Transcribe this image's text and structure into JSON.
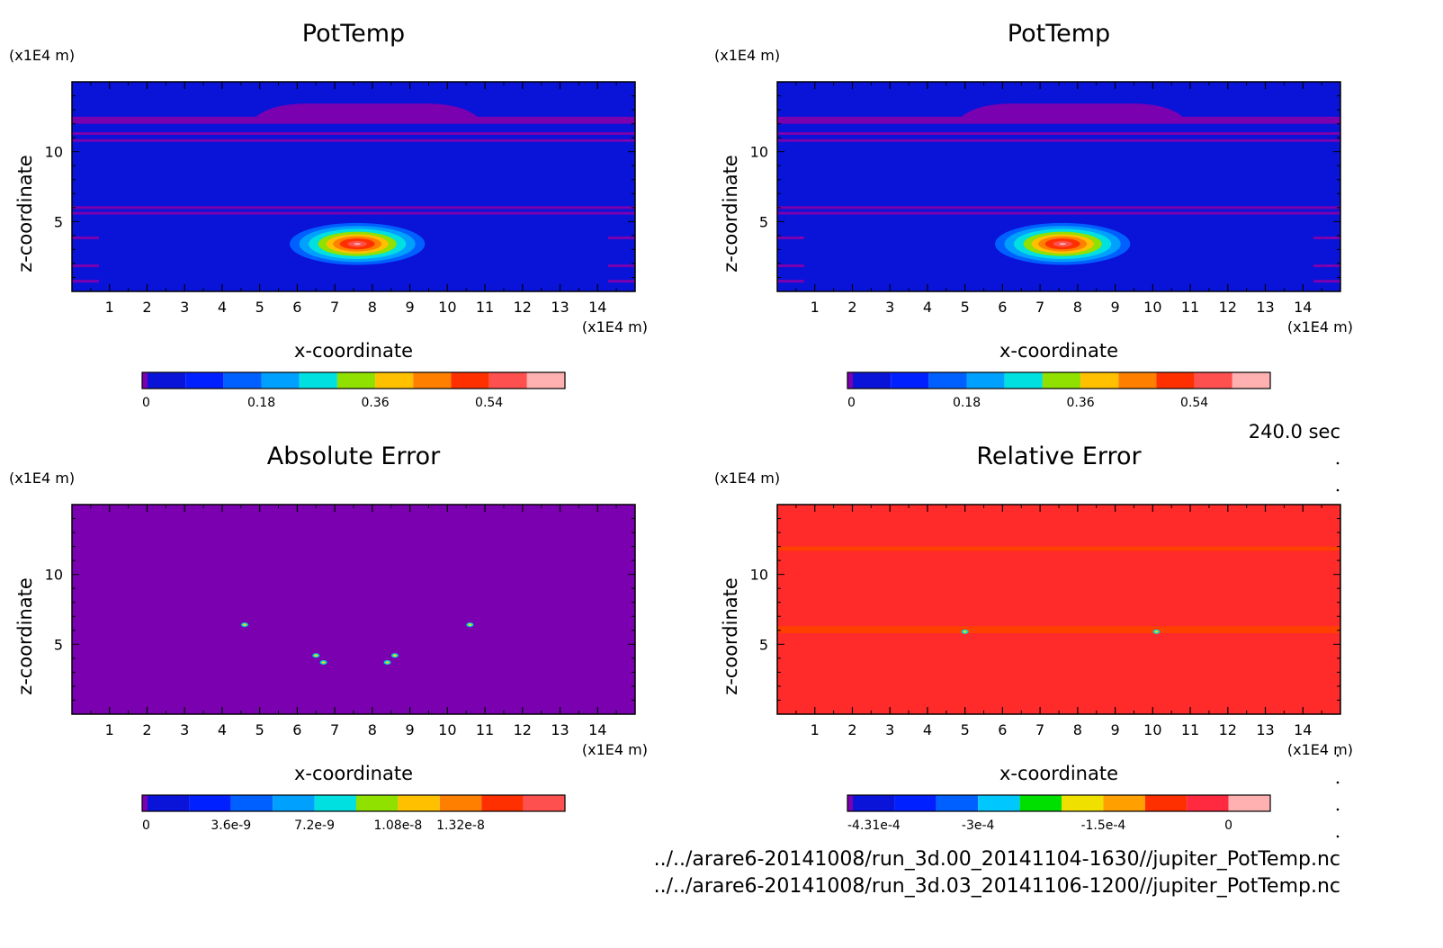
{
  "time_label": "240.0 sec",
  "footer": {
    "file1": "../../arare6-20141008/run_3d.00_20141104-1630//jupiter_PotTemp.nc",
    "file2": "../../arare6-20141008/run_3d.03_20141106-1200//jupiter_PotTemp.nc"
  },
  "chart_data": [
    {
      "type": "heatmap",
      "title": "PotTemp",
      "xlabel": "x-coordinate",
      "ylabel": "z-coordinate",
      "x_unit": "(x1E4 m)",
      "y_unit": "(x1E4 m)",
      "xlim": [
        0,
        15
      ],
      "ylim": [
        0,
        15
      ],
      "x_ticks": [
        "1",
        "2",
        "3",
        "4",
        "5",
        "6",
        "7",
        "8",
        "9",
        "10",
        "11",
        "12",
        "13",
        "14"
      ],
      "y_ticks": [
        "5",
        "10"
      ],
      "background_color": "#0a14d8",
      "features": [
        {
          "kind": "bubble",
          "x": 7.6,
          "z": 3.4,
          "rx": 1.8,
          "rz": 1.5,
          "max": 0.6
        },
        {
          "kind": "band",
          "z_from": 12.0,
          "z_to": 12.5,
          "color": "#7a00b0"
        }
      ],
      "colorbar": {
        "labels": [
          "0",
          "0.18",
          "0.36",
          "0.54"
        ],
        "colors": [
          "#7a00b0",
          "#0a14d8",
          "#0020ff",
          "#0060ff",
          "#00a0ff",
          "#00e0e0",
          "#90e000",
          "#ffc000",
          "#ff8000",
          "#ff3000",
          "#ff5050",
          "#ffb0b0"
        ]
      }
    },
    {
      "type": "heatmap",
      "title": "PotTemp",
      "xlabel": "x-coordinate",
      "ylabel": "z-coordinate",
      "x_unit": "(x1E4 m)",
      "y_unit": "(x1E4 m)",
      "xlim": [
        0,
        15
      ],
      "ylim": [
        0,
        15
      ],
      "x_ticks": [
        "1",
        "2",
        "3",
        "4",
        "5",
        "6",
        "7",
        "8",
        "9",
        "10",
        "11",
        "12",
        "13",
        "14"
      ],
      "y_ticks": [
        "5",
        "10"
      ],
      "background_color": "#0a14d8",
      "features": [
        {
          "kind": "bubble",
          "x": 7.6,
          "z": 3.4,
          "rx": 1.8,
          "rz": 1.5,
          "max": 0.6
        },
        {
          "kind": "band",
          "z_from": 12.0,
          "z_to": 12.5,
          "color": "#7a00b0"
        }
      ],
      "colorbar": {
        "labels": [
          "0",
          "0.18",
          "0.36",
          "0.54"
        ],
        "colors": [
          "#7a00b0",
          "#0a14d8",
          "#0020ff",
          "#0060ff",
          "#00a0ff",
          "#00e0e0",
          "#90e000",
          "#ffc000",
          "#ff8000",
          "#ff3000",
          "#ff5050",
          "#ffb0b0"
        ]
      }
    },
    {
      "type": "heatmap",
      "title": "Absolute Error",
      "xlabel": "x-coordinate",
      "ylabel": "z-coordinate",
      "x_unit": "(x1E4 m)",
      "y_unit": "(x1E4 m)",
      "xlim": [
        0,
        15
      ],
      "ylim": [
        0,
        15
      ],
      "x_ticks": [
        "1",
        "2",
        "3",
        "4",
        "5",
        "6",
        "7",
        "8",
        "9",
        "10",
        "11",
        "12",
        "13",
        "14"
      ],
      "y_ticks": [
        "5",
        "10"
      ],
      "background_color": "#7a00b0",
      "features": [
        {
          "kind": "spot",
          "x": 4.6,
          "z": 6.4
        },
        {
          "kind": "spot",
          "x": 10.6,
          "z": 6.4
        },
        {
          "kind": "spot",
          "x": 6.5,
          "z": 4.2
        },
        {
          "kind": "spot",
          "x": 6.7,
          "z": 3.7
        },
        {
          "kind": "spot",
          "x": 8.6,
          "z": 4.2
        },
        {
          "kind": "spot",
          "x": 8.4,
          "z": 3.7
        }
      ],
      "colorbar": {
        "labels": [
          "0",
          "3.6e-9",
          "7.2e-9",
          "1.08e-8",
          "1.32e-8"
        ],
        "colors": [
          "#7a00b0",
          "#0a14d8",
          "#0020ff",
          "#0060ff",
          "#00a0ff",
          "#00e0e0",
          "#90e000",
          "#ffc000",
          "#ff8000",
          "#ff3000",
          "#ff5050"
        ]
      }
    },
    {
      "type": "heatmap",
      "title": "Relative Error",
      "xlabel": "x-coordinate",
      "ylabel": "z-coordinate",
      "x_unit": "(x1E4 m)",
      "y_unit": "(x1E4 m)",
      "xlim": [
        0,
        15
      ],
      "ylim": [
        0,
        15
      ],
      "x_ticks": [
        "1",
        "2",
        "3",
        "4",
        "5",
        "6",
        "7",
        "8",
        "9",
        "10",
        "11",
        "12",
        "13",
        "14"
      ],
      "y_ticks": [
        "5",
        "10"
      ],
      "background_color": "#ff2a2a",
      "features": [
        {
          "kind": "band",
          "z_from": 11.7,
          "z_to": 12.0,
          "color": "#ff4000"
        },
        {
          "kind": "band",
          "z_from": 5.8,
          "z_to": 6.3,
          "color": "#ff4000"
        },
        {
          "kind": "spot",
          "x": 5.0,
          "z": 5.9
        },
        {
          "kind": "spot",
          "x": 10.1,
          "z": 5.9
        }
      ],
      "colorbar": {
        "labels": [
          "-4.31e-4",
          "-3e-4",
          "-1.5e-4",
          "0"
        ],
        "colors": [
          "#7a00b0",
          "#0a14d8",
          "#0020ff",
          "#0060ff",
          "#00c8ff",
          "#00e000",
          "#f0e000",
          "#ffa000",
          "#ff3000",
          "#ff2a40",
          "#ffb0b0"
        ]
      }
    }
  ]
}
